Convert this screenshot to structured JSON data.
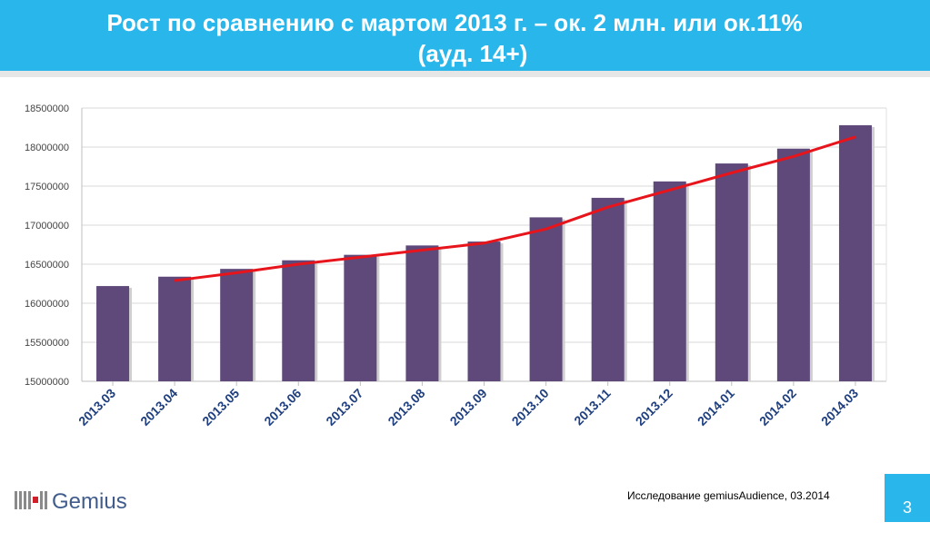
{
  "header": {
    "title_line1": "Рост по сравнению с мартом 2013 г. – ок. 2 млн. или ок.11%",
    "title_line2": "(ауд. 14+)"
  },
  "footer": {
    "source": "Исследование gemiusAudience, 03.2014",
    "page_number": "3",
    "logo_text": "Gemius"
  },
  "colors": {
    "header_bg": "#29b6ea",
    "bar": "#5e497a",
    "trend": "#e8141b"
  },
  "chart_data": {
    "type": "bar",
    "title": "",
    "xlabel": "",
    "ylabel": "",
    "categories": [
      "2013.03",
      "2013.04",
      "2013.05",
      "2013.06",
      "2013.07",
      "2013.08",
      "2013.09",
      "2013.10",
      "2013.11",
      "2013.12",
      "2014.01",
      "2014.02",
      "2014.03"
    ],
    "values": [
      16220000,
      16340000,
      16440000,
      16550000,
      16620000,
      16740000,
      16790000,
      17100000,
      17350000,
      17560000,
      17790000,
      17980000,
      18280000
    ],
    "trend": {
      "type": "line",
      "x": [
        "2013.04",
        "2013.05",
        "2013.06",
        "2013.07",
        "2013.08",
        "2013.09",
        "2013.10",
        "2013.11",
        "2013.12",
        "2014.01",
        "2014.02",
        "2014.03"
      ],
      "values": [
        16290000,
        16390000,
        16500000,
        16590000,
        16680000,
        16770000,
        16950000,
        17230000,
        17450000,
        17670000,
        17880000,
        18130000
      ]
    },
    "ylim": [
      15000000,
      18500000
    ],
    "yticks": [
      15000000,
      15500000,
      16000000,
      16500000,
      17000000,
      17500000,
      18000000,
      18500000
    ],
    "grid": true,
    "legend": "none"
  }
}
